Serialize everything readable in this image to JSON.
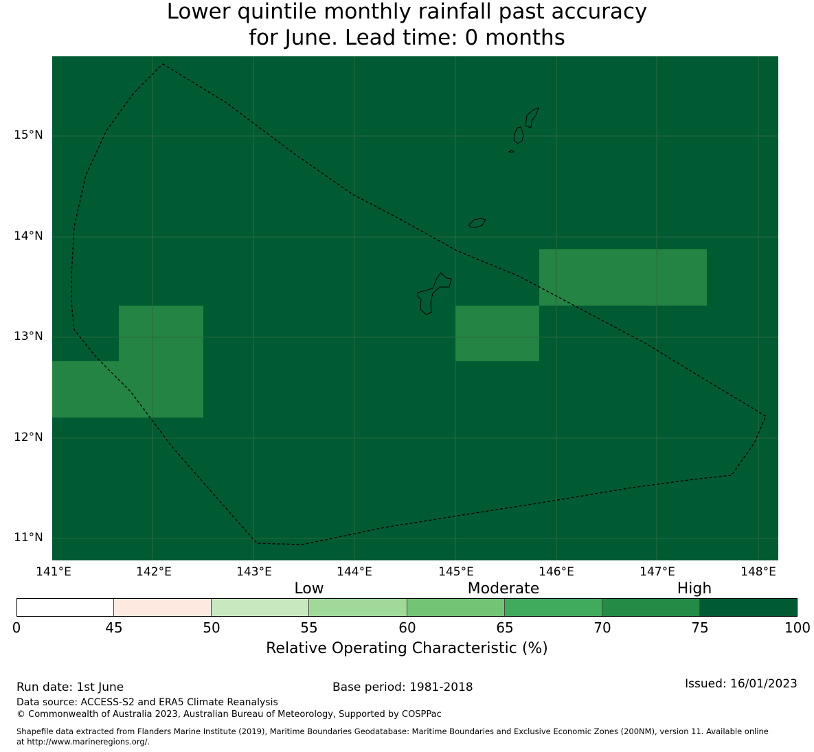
{
  "title": {
    "line1": "Lower quintile monthly rainfall past accuracy",
    "line2": "for June. Lead time: 0 months"
  },
  "map": {
    "lat_labels": [
      "15°N",
      "14°N",
      "13°N",
      "12°N",
      "11°N"
    ],
    "lon_labels": [
      "141°E",
      "142°E",
      "143°E",
      "144°E",
      "145°E",
      "146°E",
      "147°E",
      "148°E"
    ],
    "background_color": "#005a32",
    "moderate_cell_color": "#238443",
    "grid_color": "#2f6b3f",
    "eez_outline_style": "dashed"
  },
  "colorbar": {
    "category_labels": [
      "Low",
      "Moderate",
      "High"
    ],
    "tick_labels": [
      "0",
      "45",
      "50",
      "55",
      "60",
      "65",
      "70",
      "75",
      "100"
    ],
    "colors": [
      "#ffffff",
      "#fee9e0",
      "#c7e9c0",
      "#a1d99b",
      "#74c476",
      "#41ab5d",
      "#238b45",
      "#005a32"
    ],
    "title": "Relative Operating Characteristic (%)"
  },
  "footer": {
    "run_date": "Run date: 1st June",
    "base_period": "Base period: 1981-2018",
    "issued": "Issued: 16/01/2023",
    "data_source": "Data source: ACCESS-S2 and ERA5 Climate Reanalysis",
    "copyright": "© Commonwealth of Australia 2023, Australian Bureau of Meteorology, Supported by COSPPac",
    "shapefile_line1": "Shapefile data extracted from Flanders Marine Institute (2019), Maritime Boundaries Geodatabase: Maritime Boundaries and Exclusive Economic Zones (200NM), version 11. Available online",
    "shapefile_line2": "at http://www.marineregions.org/."
  }
}
